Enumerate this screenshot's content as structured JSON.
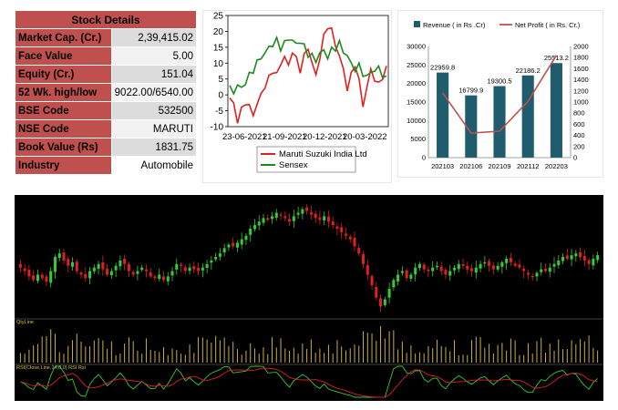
{
  "stock_details": {
    "title": "Stock Details",
    "rows": [
      {
        "label": "Market Cap. (Cr.)",
        "value": "2,39,415.02"
      },
      {
        "label": "Face Value",
        "value": "5.00"
      },
      {
        "label": "Equity (Cr.)",
        "value": "151.04"
      },
      {
        "label": "52 Wk. high/low",
        "value": "9022.00/6540.00"
      },
      {
        "label": "BSE Code",
        "value": "532500"
      },
      {
        "label": "NSE Code",
        "value": "MARUTI"
      },
      {
        "label": "Book Value (Rs)",
        "value": "1831.75"
      },
      {
        "label": "Industry",
        "value": "Automobile"
      }
    ]
  },
  "chart_data": [
    {
      "type": "line",
      "x_ticks": [
        "23-06-2021",
        "21-09-2021",
        "20-12-2021",
        "20-03-2022"
      ],
      "ylim": [
        -10,
        25
      ],
      "y_ticks": [
        -10,
        -5,
        0,
        5,
        10,
        15,
        20,
        25
      ],
      "legend": "bottom",
      "series": [
        {
          "name": "Maruti Suzuki India Ltd",
          "color": "#e02020",
          "values": [
            -1,
            -3,
            -8,
            -5,
            -2,
            -4,
            -6,
            -3,
            0,
            3,
            5,
            8,
            6,
            10,
            12,
            9,
            14,
            11,
            8,
            12,
            15,
            10,
            6,
            12,
            18,
            22,
            20,
            16,
            12,
            8,
            2,
            6,
            10,
            4,
            -3,
            2,
            8,
            5,
            3,
            6,
            8
          ]
        },
        {
          "name": "Sensex",
          "color": "#1a8a1a",
          "values": [
            2,
            1,
            3,
            2,
            4,
            6,
            8,
            10,
            12,
            13,
            15,
            16,
            17,
            15,
            16,
            18,
            17,
            16,
            17,
            15,
            13,
            12,
            11,
            13,
            14,
            12,
            14,
            15,
            16,
            14,
            12,
            10,
            8,
            9,
            7,
            5,
            8,
            7,
            9,
            6,
            5
          ]
        }
      ]
    },
    {
      "type": "bar",
      "categories": [
        "202103",
        "202106",
        "202109",
        "202112",
        "202203"
      ],
      "legend": "top",
      "y_left_ticks": [
        0,
        5000,
        10000,
        15000,
        20000,
        25000,
        30000
      ],
      "y_right_ticks": [
        0,
        200,
        400,
        600,
        800,
        1000,
        1200,
        1400,
        1600,
        1800,
        2000
      ],
      "ylim": [
        0,
        30000
      ],
      "y2lim": [
        0,
        2000
      ],
      "series": [
        {
          "name": "Revenue ( in Rs .Cr)",
          "color": "#1f5c6e",
          "values": [
            22959.8,
            16799.9,
            19300.5,
            22186.2,
            25513.2
          ],
          "labels": [
            "22959.8",
            "16799.9",
            "19300.5",
            "22186.2",
            "25513.2"
          ]
        },
        {
          "name": "Net Profit ( in Rs. Cr.)",
          "color": "#c0504d",
          "values": [
            1166,
            441,
            475,
            1011,
            1839
          ]
        }
      ]
    },
    {
      "type": "candlestick",
      "panels": [
        "price",
        "QtyLine",
        "RSI"
      ],
      "qty_label": "QtyLine",
      "rsi_label": "RSI(Close,Line,14,0,0) RSI Rsi",
      "up_color": "#33cc33",
      "down_color": "#e02020",
      "closes": [
        62,
        60,
        57,
        55,
        58,
        56,
        54,
        60,
        68,
        70,
        66,
        63,
        65,
        60,
        58,
        56,
        60,
        62,
        64,
        61,
        58,
        60,
        63,
        66,
        64,
        60,
        58,
        60,
        62,
        60,
        57,
        56,
        58,
        55,
        57,
        60,
        64,
        63,
        60,
        62,
        61,
        60,
        62,
        64,
        66,
        68,
        70,
        73,
        75,
        74,
        76,
        78,
        80,
        84,
        86,
        88,
        90,
        89,
        91,
        93,
        92,
        90,
        88,
        91,
        93,
        95,
        94,
        92,
        90,
        89,
        91,
        88,
        86,
        84,
        82,
        80,
        78,
        74,
        70,
        64,
        58,
        52,
        45,
        40,
        44,
        50,
        55,
        58,
        60,
        56,
        58,
        62,
        64,
        61,
        60,
        62,
        63,
        60,
        58,
        60,
        62,
        64,
        63,
        61,
        60,
        62,
        64,
        65,
        63,
        61,
        63,
        65,
        67,
        65,
        63,
        62,
        60,
        58,
        57,
        59,
        61,
        60,
        62,
        64,
        66,
        68,
        67,
        69,
        70,
        68,
        66,
        64,
        67,
        69
      ]
    }
  ]
}
